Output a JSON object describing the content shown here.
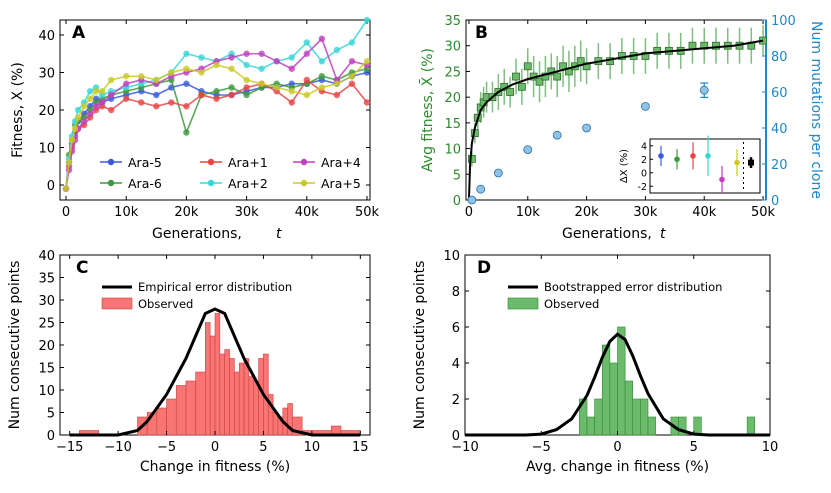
{
  "chart_data": [
    {
      "panel": "A",
      "type": "line",
      "xlabel": "Generations, t",
      "ylabel": "Fitness, X (%)",
      "xlim": [
        -1000,
        50500
      ],
      "ylim": [
        -4,
        44
      ],
      "xticks": [
        0,
        10000,
        20000,
        30000,
        40000,
        50000
      ],
      "xtick_labels": [
        "0",
        "10k",
        "20k",
        "30k",
        "40k",
        "50k"
      ],
      "yticks": [
        0,
        10,
        20,
        30,
        40
      ],
      "ytick_labels": [
        "0",
        "10",
        "20",
        "30",
        "40"
      ],
      "x": [
        0,
        500,
        1000,
        1500,
        2000,
        3000,
        4000,
        5000,
        6000,
        7500,
        10000,
        12500,
        15000,
        17500,
        20000,
        22500,
        25000,
        27500,
        30000,
        32500,
        35000,
        37500,
        40000,
        42500,
        45000,
        47500,
        50000
      ],
      "series": [
        {
          "name": "Ara-5",
          "color": "#3b5bdb",
          "values": [
            -1,
            6,
            11,
            14,
            17,
            19,
            21,
            23,
            22,
            23,
            24,
            25,
            24,
            26,
            27,
            25,
            24,
            24,
            25,
            26,
            26,
            27,
            27,
            28,
            27,
            29,
            30
          ]
        },
        {
          "name": "Ara-6",
          "color": "#3d9a3d",
          "values": [
            -1,
            8,
            12,
            16,
            17,
            18,
            20,
            22,
            23,
            24,
            25,
            26,
            27,
            28,
            14,
            24,
            25,
            26,
            24,
            26,
            27,
            26,
            27,
            29,
            28,
            30,
            31
          ]
        },
        {
          "name": "Ara+1",
          "color": "#e84545",
          "values": [
            -1,
            5,
            10,
            13,
            15,
            16,
            18,
            20,
            21,
            20,
            23,
            22,
            21,
            22,
            21,
            24,
            23,
            24,
            26,
            27,
            25,
            22,
            28,
            25,
            24,
            27,
            22
          ]
        },
        {
          "name": "Ara+2",
          "color": "#3ad6d6",
          "values": [
            -1,
            7,
            13,
            17,
            20,
            22,
            25,
            26,
            24,
            25,
            26,
            27,
            28,
            30,
            35,
            34,
            33,
            35,
            32,
            31,
            33,
            34,
            38,
            33,
            36,
            38,
            44
          ]
        },
        {
          "name": "Ara+4",
          "color": "#c040c0",
          "values": [
            -1,
            4,
            9,
            12,
            15,
            17,
            19,
            21,
            22,
            24,
            27,
            28,
            27,
            29,
            30,
            31,
            33,
            34,
            35,
            35,
            33,
            31,
            35,
            39,
            28,
            33,
            32
          ]
        },
        {
          "name": "Ara+5",
          "color": "#c9c92a",
          "values": [
            -1,
            6,
            12,
            15,
            18,
            21,
            23,
            25,
            25,
            28,
            29,
            29,
            28,
            30,
            31,
            30,
            32,
            31,
            28,
            27,
            26,
            25,
            24,
            26,
            27,
            29,
            33
          ]
        }
      ]
    },
    {
      "panel": "B",
      "type": "scatter",
      "xlabel": "Generations, t",
      "ylabel": "Avg fitness, X̄ (%)",
      "ylabel_right": "Num mutations per clone",
      "xlim": [
        -500,
        50500
      ],
      "ylim": [
        0,
        35
      ],
      "ylim_right": [
        0,
        100
      ],
      "xticks": [
        0,
        10000,
        20000,
        30000,
        40000,
        50000
      ],
      "xtick_labels": [
        "0",
        "10k",
        "20k",
        "30k",
        "40k",
        "50k"
      ],
      "yticks": [
        0,
        5,
        10,
        15,
        20,
        25,
        30,
        35
      ],
      "ytick_labels": [
        "0",
        "5",
        "10",
        "15",
        "20",
        "25",
        "30",
        "35"
      ],
      "yticks_right": [
        0,
        20,
        40,
        60,
        80,
        100
      ],
      "ytick_labels_right": [
        "0",
        "20",
        "40",
        "60",
        "80",
        "100"
      ],
      "fitness_points": {
        "x": [
          500,
          1000,
          1500,
          2000,
          2500,
          3000,
          4000,
          5000,
          6000,
          7000,
          8000,
          9000,
          10000,
          11000,
          12000,
          13000,
          14000,
          15000,
          16000,
          17000,
          18000,
          19000,
          20000,
          22000,
          24000,
          26000,
          28000,
          30000,
          32000,
          34000,
          36000,
          38000,
          40000,
          42000,
          44000,
          46000,
          48000,
          50000
        ],
        "y": [
          8,
          13,
          16,
          18,
          19,
          20,
          20,
          21,
          22,
          21,
          24,
          22,
          26,
          24,
          23,
          24,
          25,
          24,
          26,
          25,
          26,
          27,
          26,
          27,
          27,
          28,
          28,
          28,
          29,
          29,
          29,
          30,
          30,
          30,
          30,
          30,
          30,
          31
        ],
        "err": [
          1.5,
          2,
          2.5,
          3,
          3,
          3,
          3,
          3.5,
          3.5,
          3,
          3.5,
          3.5,
          3.5,
          4,
          4,
          4,
          3.5,
          4,
          4,
          4,
          4,
          4,
          3.5,
          3.5,
          3.5,
          3.5,
          3.5,
          3.5,
          3.5,
          3.5,
          3.5,
          3.5,
          3.5,
          3.5,
          3.5,
          3.5,
          3.5,
          3
        ]
      },
      "fit_curve": {
        "model": "power law",
        "x": [
          0,
          200,
          500,
          1000,
          2000,
          3000,
          5000,
          7500,
          10000,
          15000,
          20000,
          25000,
          30000,
          35000,
          40000,
          45000,
          50000
        ],
        "y": [
          0,
          7,
          11,
          14,
          17.5,
          19,
          21,
          22.5,
          23.5,
          25,
          26.5,
          27.5,
          28.5,
          29,
          29.5,
          30,
          31
        ]
      },
      "mutation_points": {
        "x": [
          500,
          2000,
          5000,
          10000,
          15000,
          20000,
          30000,
          40000
        ],
        "y": [
          0,
          6,
          15,
          28,
          36,
          40,
          52,
          61
        ],
        "err": [
          0,
          0,
          0,
          0,
          0,
          0,
          0,
          4
        ]
      },
      "inset": {
        "ylabel": "ΔX (%)",
        "yticks": [
          -2,
          0,
          2,
          4
        ],
        "ytick_labels": [
          "-2",
          "0",
          "2",
          "4"
        ],
        "points": [
          {
            "color": "#3b5bdb",
            "value": 2.5,
            "err": 1.5
          },
          {
            "color": "#3d9a3d",
            "value": 2,
            "err": 1.5
          },
          {
            "color": "#e84545",
            "value": 2.5,
            "err": 2
          },
          {
            "color": "#3ad6d6",
            "value": 2.5,
            "err": 3
          },
          {
            "color": "#c040c0",
            "value": -1,
            "err": 2
          },
          {
            "color": "#c9c92a",
            "value": 1.5,
            "err": 2
          },
          {
            "color": "#000000",
            "value": 1.5,
            "err": 0.8
          }
        ]
      }
    },
    {
      "panel": "C",
      "type": "bar",
      "xlabel": "Change in fitness (%)",
      "ylabel": "Num consecutive points",
      "xlim": [
        -16,
        16
      ],
      "ylim": [
        0,
        40
      ],
      "xticks": [
        -15,
        -10,
        -5,
        0,
        5,
        10,
        15
      ],
      "xtick_labels": [
        "−15",
        "−10",
        "−5",
        "0",
        "5",
        "10",
        "15"
      ],
      "yticks": [
        0,
        5,
        10,
        15,
        20,
        25,
        30,
        35,
        40
      ],
      "ytick_labels": [
        "0",
        "5",
        "10",
        "15",
        "20",
        "25",
        "30",
        "35",
        "40"
      ],
      "legend": [
        "Empirical error distribution",
        "Observed"
      ],
      "bin_edges": [
        -14,
        -12,
        -8,
        -7,
        -6,
        -5,
        -4,
        -3,
        -2,
        -1,
        -0.5,
        0,
        0.5,
        1,
        1.5,
        2,
        2.5,
        3,
        3.5,
        4,
        4.5,
        5,
        5.5,
        6,
        6.5,
        7,
        7.5,
        8,
        9,
        12,
        13,
        15
      ],
      "counts": [
        1,
        0,
        4,
        5,
        6,
        8,
        11,
        12,
        14,
        25,
        22,
        27,
        18,
        19,
        17,
        14,
        16,
        17,
        13,
        12,
        17,
        18,
        9,
        5,
        4,
        6,
        7,
        4,
        1,
        2,
        1
      ],
      "curve": {
        "x": [
          -15,
          -12,
          -10,
          -8,
          -7,
          -6,
          -5,
          -4,
          -3,
          -2,
          -1,
          0,
          1,
          2,
          3,
          4,
          5,
          6,
          7,
          8,
          10,
          12,
          15
        ],
        "y": [
          0,
          0,
          0,
          1,
          3,
          6,
          9,
          13,
          17,
          22,
          27,
          28,
          27,
          22,
          17,
          13,
          9,
          6,
          3,
          1,
          0,
          0,
          0
        ]
      }
    },
    {
      "panel": "D",
      "type": "bar",
      "xlabel": "Avg. change in fitness (%)",
      "ylabel": "Num consecutive points",
      "xlim": [
        -10,
        10
      ],
      "ylim": [
        0,
        10
      ],
      "xticks": [
        -10,
        -5,
        0,
        5,
        10
      ],
      "xtick_labels": [
        "−10",
        "−5",
        "0",
        "5",
        "10"
      ],
      "yticks": [
        0,
        2,
        4,
        6,
        8,
        10
      ],
      "ytick_labels": [
        "0",
        "2",
        "4",
        "6",
        "8",
        "10"
      ],
      "legend": [
        "Bootstrapped error distribution",
        "Observed"
      ],
      "bin_edges": [
        -2.5,
        -2,
        -1.5,
        -1,
        -0.5,
        0,
        0.5,
        1,
        1.5,
        2,
        2.5,
        3,
        3.5,
        4,
        4.5,
        5,
        5.5,
        6,
        8.5,
        9
      ],
      "counts": [
        2,
        1,
        2,
        5,
        4,
        6,
        3,
        2,
        2,
        1,
        0,
        0,
        1,
        1,
        0,
        1,
        0,
        0,
        1
      ],
      "curve": {
        "x": [
          -10,
          -6,
          -5,
          -4,
          -3,
          -2,
          -1.5,
          -1,
          -0.5,
          0,
          0.5,
          1,
          1.5,
          2,
          3,
          4,
          5,
          6,
          10
        ],
        "y": [
          0,
          0,
          0.05,
          0.3,
          0.9,
          2.2,
          3.2,
          4.3,
          5.2,
          5.6,
          5.3,
          4.4,
          3.3,
          2.3,
          0.9,
          0.3,
          0.05,
          0,
          0
        ]
      }
    }
  ]
}
